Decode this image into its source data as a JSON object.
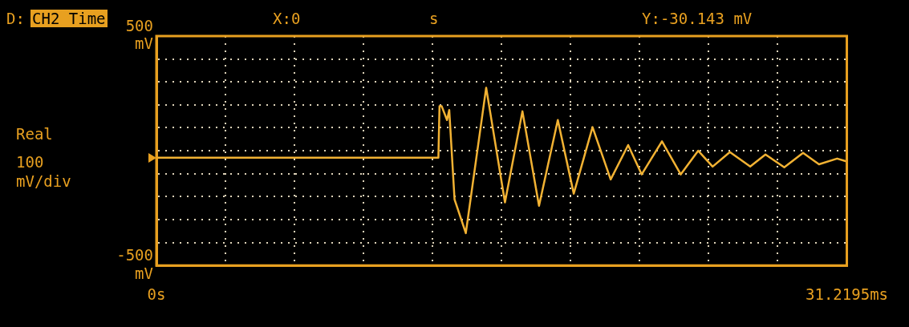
{
  "chart_data": {
    "type": "line",
    "ylabel": "Real",
    "annotations": [
      "D:",
      "CH2 Time",
      "X:0",
      "s",
      "Y:-30.143 mV",
      "100 mV/div"
    ],
    "x": [
      0,
      12.75,
      12.8,
      12.9,
      13.14,
      13.24,
      13.48,
      13.99,
      14.91,
      15.76,
      16.55,
      17.3,
      18.15,
      18.87,
      19.72,
      20.54,
      21.33,
      21.94,
      22.86,
      23.71,
      24.5,
      25.15,
      25.93,
      26.85,
      27.54,
      28.39,
      29.24,
      29.96,
      30.78,
      31.2195
    ],
    "series": [
      {
        "color": "#f2b233",
        "values": [
          -30,
          -30,
          194,
          194,
          134,
          178,
          -212,
          -359,
          275,
          -225,
          172,
          -240,
          134,
          -187,
          103,
          -125,
          25,
          -103,
          41,
          -103,
          0,
          -69,
          -6,
          -69,
          -16,
          -72,
          -9,
          -59,
          -34,
          -47
        ]
      }
    ],
    "xlim": [
      0,
      31.2195
    ],
    "xticks": [
      {
        "value": 0,
        "label": "0s"
      },
      {
        "value": 3.12195,
        "label": null
      },
      {
        "value": 6.2439,
        "label": null
      },
      {
        "value": 9.36585,
        "label": null
      },
      {
        "value": 12.4878,
        "label": null
      },
      {
        "value": 15.60975,
        "label": null
      },
      {
        "value": 18.7317,
        "label": null
      },
      {
        "value": 21.85365,
        "label": null
      },
      {
        "value": 24.9756,
        "label": null
      },
      {
        "value": 28.09755,
        "label": null
      },
      {
        "value": 31.2195,
        "label": "31.2195ms"
      }
    ],
    "ylim": [
      -500,
      500
    ],
    "yticks": [
      {
        "value": -500,
        "label": "-500 mV"
      },
      {
        "value": -400,
        "label": null
      },
      {
        "value": -300,
        "label": null
      },
      {
        "value": -200,
        "label": null
      },
      {
        "value": -100,
        "label": null
      },
      {
        "value": 0,
        "label": null
      },
      {
        "value": 100,
        "label": null
      },
      {
        "value": 200,
        "label": null
      },
      {
        "value": 300,
        "label": null
      },
      {
        "value": 400,
        "label": null
      },
      {
        "value": 500,
        "label": "500 mV"
      }
    ],
    "grid": true,
    "legend": false,
    "marker": "none",
    "line_style": "solid"
  }
}
